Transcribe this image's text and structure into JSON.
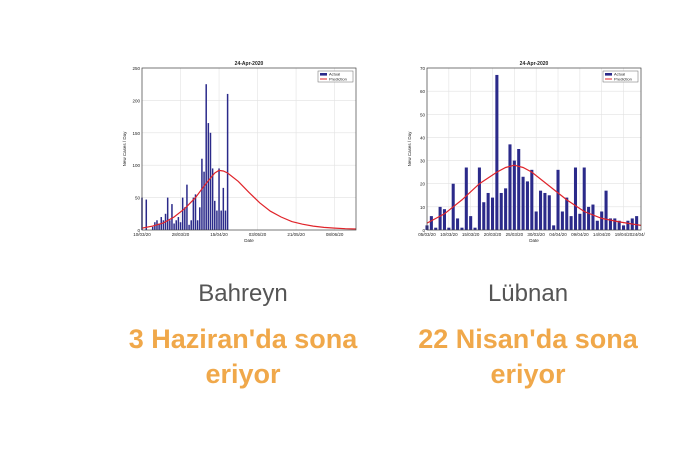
{
  "colors": {
    "bar": "#2b2a8a",
    "prediction": "#e0242a",
    "headline": "#f0a84a",
    "country": "#555555"
  },
  "chart_data": [
    {
      "type": "bar",
      "title": "24-Apr-2020",
      "xlabel": "Date",
      "ylabel": "New Cases / Day",
      "ylim": [
        0,
        250
      ],
      "yticks": [
        0,
        50,
        100,
        150,
        200,
        250
      ],
      "xlim": [
        0,
        100
      ],
      "x_tick_positions": [
        0,
        18,
        36,
        54,
        72,
        90
      ],
      "x_tick_labels": [
        "10/03/20",
        "28/03/20",
        "15/04/20",
        "03/05/20",
        "21/05/20",
        "08/06/20"
      ],
      "grid": true,
      "legend_position": "top-right",
      "legend": [
        "Actual",
        "Prediction"
      ],
      "series": [
        {
          "name": "Actual",
          "kind": "bar",
          "x": [
            0,
            2,
            5,
            6,
            7,
            8,
            9,
            10,
            11,
            12,
            13,
            14,
            15,
            16,
            17,
            18,
            19,
            20,
            21,
            22,
            23,
            24,
            25,
            26,
            27,
            28,
            29,
            30,
            31,
            32,
            33,
            34,
            35,
            36,
            37,
            38,
            39,
            40
          ],
          "y": [
            50,
            47,
            5,
            12,
            15,
            10,
            20,
            15,
            25,
            50,
            15,
            40,
            10,
            15,
            20,
            12,
            50,
            35,
            70,
            8,
            15,
            50,
            55,
            15,
            35,
            110,
            90,
            225,
            165,
            150,
            95,
            45,
            30,
            95,
            30,
            65,
            30,
            210
          ]
        },
        {
          "name": "Prediction",
          "kind": "line",
          "x": [
            0,
            5,
            10,
            15,
            20,
            25,
            30,
            34,
            36,
            38,
            40,
            45,
            50,
            55,
            60,
            65,
            70,
            75,
            80,
            85,
            90,
            95,
            100
          ],
          "y": [
            3,
            6,
            11,
            20,
            33,
            50,
            72,
            88,
            92,
            91,
            88,
            75,
            58,
            42,
            29,
            20,
            13,
            9,
            6,
            4,
            3,
            2,
            1.5
          ]
        }
      ]
    },
    {
      "type": "bar",
      "title": "24-Apr-2020",
      "xlabel": "Date",
      "ylabel": "New Cases / Day",
      "ylim": [
        0,
        70
      ],
      "yticks": [
        0,
        10,
        20,
        30,
        40,
        50,
        60,
        70
      ],
      "xlim": [
        0,
        49
      ],
      "x_tick_positions": [
        0,
        5,
        10,
        15,
        20,
        25,
        30,
        35,
        40,
        45,
        49
      ],
      "x_tick_labels": [
        "05/03/20",
        "10/03/20",
        "15/03/20",
        "20/03/20",
        "25/03/20",
        "30/03/20",
        "04/04/20",
        "09/04/20",
        "14/04/20",
        "19/04/20",
        "24/04/20"
      ],
      "grid": true,
      "legend_position": "top-right",
      "legend": [
        "Actual",
        "Prediction"
      ],
      "series": [
        {
          "name": "Actual",
          "kind": "bar",
          "x": [
            0,
            1,
            2,
            3,
            4,
            5,
            6,
            7,
            8,
            9,
            10,
            11,
            12,
            13,
            14,
            15,
            16,
            17,
            18,
            19,
            20,
            21,
            22,
            23,
            24,
            25,
            26,
            27,
            28,
            29,
            30,
            31,
            32,
            33,
            34,
            35,
            36,
            37,
            38,
            39,
            40,
            41,
            42,
            43,
            44,
            45,
            46,
            47,
            48
          ],
          "y": [
            2,
            6,
            1,
            10,
            9,
            1,
            20,
            5,
            1,
            27,
            6,
            1,
            27,
            12,
            16,
            14,
            67,
            16,
            18,
            37,
            30,
            35,
            23,
            21,
            26,
            8,
            17,
            16,
            15,
            2,
            26,
            8,
            14,
            6,
            27,
            7,
            27,
            10,
            11,
            4,
            8,
            17,
            5,
            5,
            4,
            2,
            4,
            5,
            6
          ]
        },
        {
          "name": "Prediction",
          "kind": "line",
          "x": [
            0,
            4,
            8,
            12,
            16,
            18,
            20,
            22,
            24,
            28,
            32,
            36,
            40,
            44,
            49
          ],
          "y": [
            3,
            7,
            13,
            20,
            25,
            27,
            28,
            27,
            25,
            19,
            13,
            8,
            5,
            3.5,
            2
          ]
        }
      ]
    }
  ],
  "captions": [
    {
      "country": "Bahreyn",
      "headline_line1": "3 Haziran'da sona",
      "headline_line2": "eriyor"
    },
    {
      "country": "Lübnan",
      "headline_line1": "22 Nisan'da sona",
      "headline_line2": "eriyor"
    }
  ]
}
